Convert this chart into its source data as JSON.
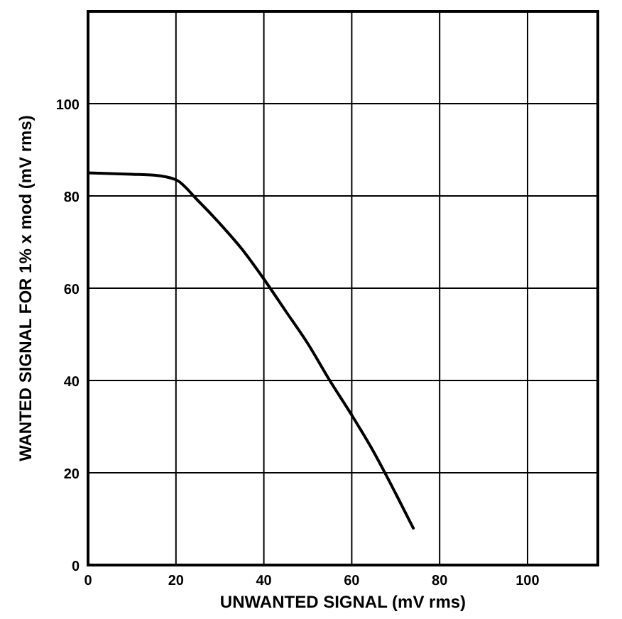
{
  "chart_data": {
    "type": "line",
    "xlabel": "UNWANTED SIGNAL (mV rms)",
    "ylabel": "WANTED SIGNAL FOR 1% x mod (mV rms)",
    "x": [
      0,
      10,
      15,
      20,
      25,
      30,
      35,
      40,
      45,
      50,
      55,
      60,
      65,
      70,
      74
    ],
    "series": [
      {
        "color": "#000000",
        "values": [
          85,
          84.7,
          84.5,
          83.5,
          79,
          74,
          68.5,
          62,
          55,
          48,
          40,
          32.5,
          24.5,
          15.5,
          8
        ]
      }
    ],
    "xlim": [
      0,
      116
    ],
    "ylim": [
      0,
      120
    ],
    "xticks": [
      0,
      20,
      40,
      60,
      80,
      100
    ],
    "yticks": [
      0,
      20,
      40,
      60,
      80,
      100
    ],
    "grid": true,
    "marker": "none",
    "line_style": "solid"
  }
}
